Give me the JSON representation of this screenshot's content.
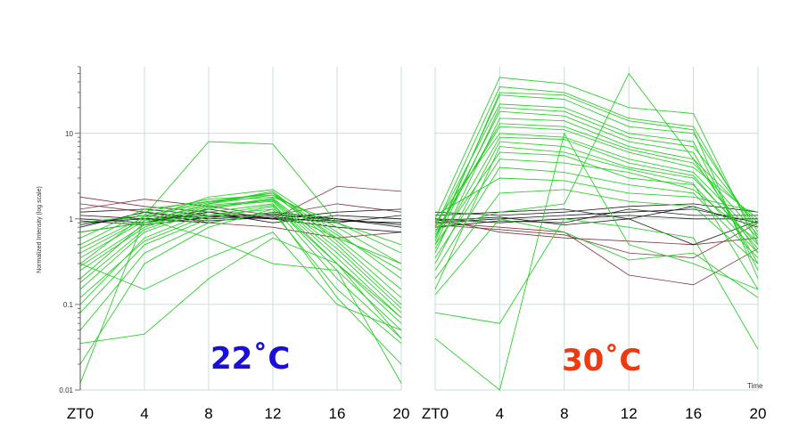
{
  "chart_data": [
    {
      "type": "line",
      "panel": "left",
      "condition_label": "22˚C",
      "condition_color": "#1a0fd6",
      "x_tick_labels": [
        "ZT0",
        "4",
        "8",
        "12",
        "16",
        "20"
      ],
      "x": [
        0,
        4,
        8,
        12,
        16,
        20
      ],
      "ylabel": "Normalized Intensity (log scale)",
      "yscale": "log",
      "ylim": [
        0.01,
        60
      ],
      "y_ticks": [
        "10",
        "1",
        "0.1",
        "0.01"
      ],
      "grid": true,
      "series_colors": {
        "green": "#22cc22",
        "black": "#111111",
        "maroon": "#7a2a35"
      },
      "series": [
        {
          "color": "green",
          "values": [
            0.2,
            0.9,
            1.5,
            1.9,
            0.6,
            0.15
          ]
        },
        {
          "color": "green",
          "values": [
            0.3,
            1.1,
            1.6,
            2.0,
            0.5,
            0.1
          ]
        },
        {
          "color": "green",
          "values": [
            0.15,
            0.7,
            1.3,
            1.7,
            0.4,
            0.08
          ]
        },
        {
          "color": "green",
          "values": [
            0.4,
            1.0,
            1.8,
            2.2,
            0.7,
            0.2
          ]
        },
        {
          "color": "green",
          "values": [
            0.25,
            0.8,
            1.4,
            1.6,
            0.3,
            0.06
          ]
        },
        {
          "color": "green",
          "values": [
            0.1,
            0.6,
            1.2,
            1.5,
            0.25,
            0.05
          ]
        },
        {
          "color": "green",
          "values": [
            0.5,
            1.2,
            1.7,
            1.9,
            0.8,
            0.3
          ]
        },
        {
          "color": "green",
          "values": [
            0.08,
            0.5,
            1.0,
            1.4,
            0.2,
            0.04
          ]
        },
        {
          "color": "green",
          "values": [
            0.35,
            0.95,
            1.5,
            2.1,
            0.55,
            0.12
          ]
        },
        {
          "color": "green",
          "values": [
            0.05,
            0.4,
            0.9,
            1.2,
            0.15,
            0.035
          ]
        },
        {
          "color": "green",
          "values": [
            0.6,
            1.3,
            1.6,
            1.8,
            0.9,
            0.4
          ]
        },
        {
          "color": "green",
          "values": [
            0.02,
            0.3,
            0.8,
            1.3,
            0.12,
            0.02
          ]
        },
        {
          "color": "green",
          "values": [
            0.18,
            0.75,
            1.35,
            1.75,
            0.45,
            0.09
          ]
        },
        {
          "color": "green",
          "values": [
            0.45,
            1.05,
            1.55,
            2.0,
            0.65,
            0.25
          ]
        },
        {
          "color": "green",
          "values": [
            0.28,
            0.85,
            1.45,
            1.65,
            0.35,
            0.07
          ]
        },
        {
          "color": "green",
          "values": [
            0.9,
            1.1,
            8.0,
            7.5,
            0.9,
            0.5
          ]
        },
        {
          "color": "green",
          "values": [
            0.035,
            0.045,
            0.2,
            0.6,
            0.3,
            0.04
          ]
        },
        {
          "color": "green",
          "values": [
            0.012,
            1.0,
            0.6,
            0.3,
            0.25,
            0.012
          ]
        },
        {
          "color": "green",
          "values": [
            0.3,
            0.15,
            0.35,
            0.7,
            0.1,
            0.05
          ]
        },
        {
          "color": "green",
          "values": [
            0.7,
            0.9,
            1.1,
            1.3,
            0.6,
            0.3
          ]
        },
        {
          "color": "green",
          "values": [
            0.12,
            0.55,
            1.1,
            1.45,
            0.3,
            0.07
          ]
        },
        {
          "color": "black",
          "values": [
            0.9,
            1.0,
            1.1,
            1.0,
            0.95,
            0.9
          ]
        },
        {
          "color": "black",
          "values": [
            0.8,
            1.2,
            1.0,
            1.1,
            1.0,
            0.8
          ]
        },
        {
          "color": "black",
          "values": [
            1.0,
            0.9,
            1.2,
            0.9,
            1.1,
            1.0
          ]
        },
        {
          "color": "black",
          "values": [
            0.85,
            1.1,
            0.95,
            1.05,
            0.9,
            1.1
          ]
        },
        {
          "color": "black",
          "values": [
            1.1,
            1.0,
            0.9,
            1.2,
            1.0,
            0.85
          ]
        },
        {
          "color": "black",
          "values": [
            0.7,
            0.9,
            1.3,
            1.0,
            0.8,
            0.7
          ]
        },
        {
          "color": "black",
          "values": [
            1.2,
            1.3,
            1.1,
            1.0,
            1.2,
            1.3
          ]
        },
        {
          "color": "black",
          "values": [
            0.95,
            0.85,
            1.05,
            1.15,
            0.95,
            0.9
          ]
        },
        {
          "color": "maroon",
          "values": [
            1.8,
            1.4,
            1.2,
            1.0,
            2.4,
            2.1
          ]
        },
        {
          "color": "maroon",
          "values": [
            1.3,
            1.7,
            1.4,
            1.1,
            1.5,
            1.2
          ]
        },
        {
          "color": "maroon",
          "values": [
            1.5,
            1.2,
            0.9,
            0.8,
            0.6,
            0.7
          ]
        }
      ]
    },
    {
      "type": "line",
      "panel": "right",
      "condition_label": "30˚C",
      "condition_color": "#ee3a10",
      "x_tick_labels": [
        "ZT0",
        "4",
        "8",
        "12",
        "16",
        "20"
      ],
      "x": [
        0,
        4,
        8,
        12,
        16,
        20
      ],
      "xlabel": "Time",
      "yscale": "log",
      "ylim": [
        0.01,
        60
      ],
      "grid": true,
      "series_colors": {
        "green": "#22cc22",
        "black": "#111111",
        "maroon": "#7a2a35"
      },
      "series": [
        {
          "color": "green",
          "values": [
            1.0,
            45,
            38,
            20,
            17,
            0.5
          ]
        },
        {
          "color": "green",
          "values": [
            0.8,
            35,
            30,
            15,
            12,
            0.6
          ]
        },
        {
          "color": "green",
          "values": [
            0.6,
            28,
            25,
            12,
            10,
            0.7
          ]
        },
        {
          "color": "green",
          "values": [
            0.5,
            20,
            18,
            9,
            7,
            0.8
          ]
        },
        {
          "color": "green",
          "values": [
            0.4,
            15,
            14,
            7,
            5,
            0.9
          ]
        },
        {
          "color": "green",
          "values": [
            0.7,
            12,
            11,
            6,
            4,
            1.0
          ]
        },
        {
          "color": "green",
          "values": [
            0.9,
            10,
            9,
            5,
            3.5,
            0.6
          ]
        },
        {
          "color": "green",
          "values": [
            0.3,
            8,
            7,
            4,
            3,
            0.5
          ]
        },
        {
          "color": "green",
          "values": [
            0.5,
            6,
            5.5,
            3,
            2.5,
            0.4
          ]
        },
        {
          "color": "green",
          "values": [
            0.25,
            4,
            3.5,
            2.5,
            2,
            0.35
          ]
        },
        {
          "color": "green",
          "values": [
            0.6,
            18,
            16,
            8,
            6,
            0.3
          ]
        },
        {
          "color": "green",
          "values": [
            0.8,
            22,
            20,
            10,
            8,
            0.25
          ]
        },
        {
          "color": "green",
          "values": [
            0.45,
            9,
            8.5,
            4.5,
            3.2,
            0.45
          ]
        },
        {
          "color": "green",
          "values": [
            0.35,
            5,
            4.5,
            3.5,
            2.2,
            0.55
          ]
        },
        {
          "color": "green",
          "values": [
            1.1,
            3,
            2.8,
            2.0,
            1.8,
            1.2
          ]
        },
        {
          "color": "green",
          "values": [
            0.2,
            2,
            2.2,
            1.6,
            1.4,
            0.3
          ]
        },
        {
          "color": "green",
          "values": [
            0.55,
            30,
            28,
            14,
            11,
            0.2
          ]
        },
        {
          "color": "green",
          "values": [
            0.15,
            7,
            6,
            3.8,
            2.6,
            0.15
          ]
        },
        {
          "color": "green",
          "values": [
            0.65,
            13,
            12,
            6.5,
            4.5,
            0.65
          ]
        },
        {
          "color": "green",
          "values": [
            0.75,
            1.2,
            1.5,
            50,
            5,
            0.4
          ]
        },
        {
          "color": "green",
          "values": [
            0.08,
            0.06,
            1.0,
            0.8,
            0.6,
            0.03
          ]
        },
        {
          "color": "green",
          "values": [
            0.04,
            0.01,
            10,
            0.5,
            0.3,
            0.15
          ]
        },
        {
          "color": "green",
          "values": [
            0.13,
            1.0,
            0.7,
            0.33,
            0.4,
            0.12
          ]
        },
        {
          "color": "black",
          "values": [
            0.9,
            1.0,
            1.1,
            1.2,
            1.3,
            0.9
          ]
        },
        {
          "color": "black",
          "values": [
            1.0,
            0.9,
            1.0,
            1.1,
            1.0,
            1.0
          ]
        },
        {
          "color": "black",
          "values": [
            1.1,
            1.2,
            1.3,
            1.0,
            1.4,
            0.8
          ]
        },
        {
          "color": "black",
          "values": [
            0.8,
            0.95,
            0.9,
            1.3,
            1.1,
            1.1
          ]
        },
        {
          "color": "black",
          "values": [
            1.2,
            1.1,
            1.2,
            1.4,
            1.5,
            1.2
          ]
        },
        {
          "color": "black",
          "values": [
            0.95,
            1.05,
            0.85,
            1.0,
            0.5,
            0.95
          ]
        },
        {
          "color": "maroon",
          "values": [
            0.9,
            0.8,
            0.7,
            0.22,
            0.17,
            0.45
          ]
        },
        {
          "color": "maroon",
          "values": [
            1.0,
            0.7,
            0.6,
            0.55,
            0.5,
            0.6
          ]
        },
        {
          "color": "maroon",
          "values": [
            0.85,
            0.75,
            0.65,
            0.4,
            0.35,
            0.9
          ]
        }
      ]
    }
  ]
}
